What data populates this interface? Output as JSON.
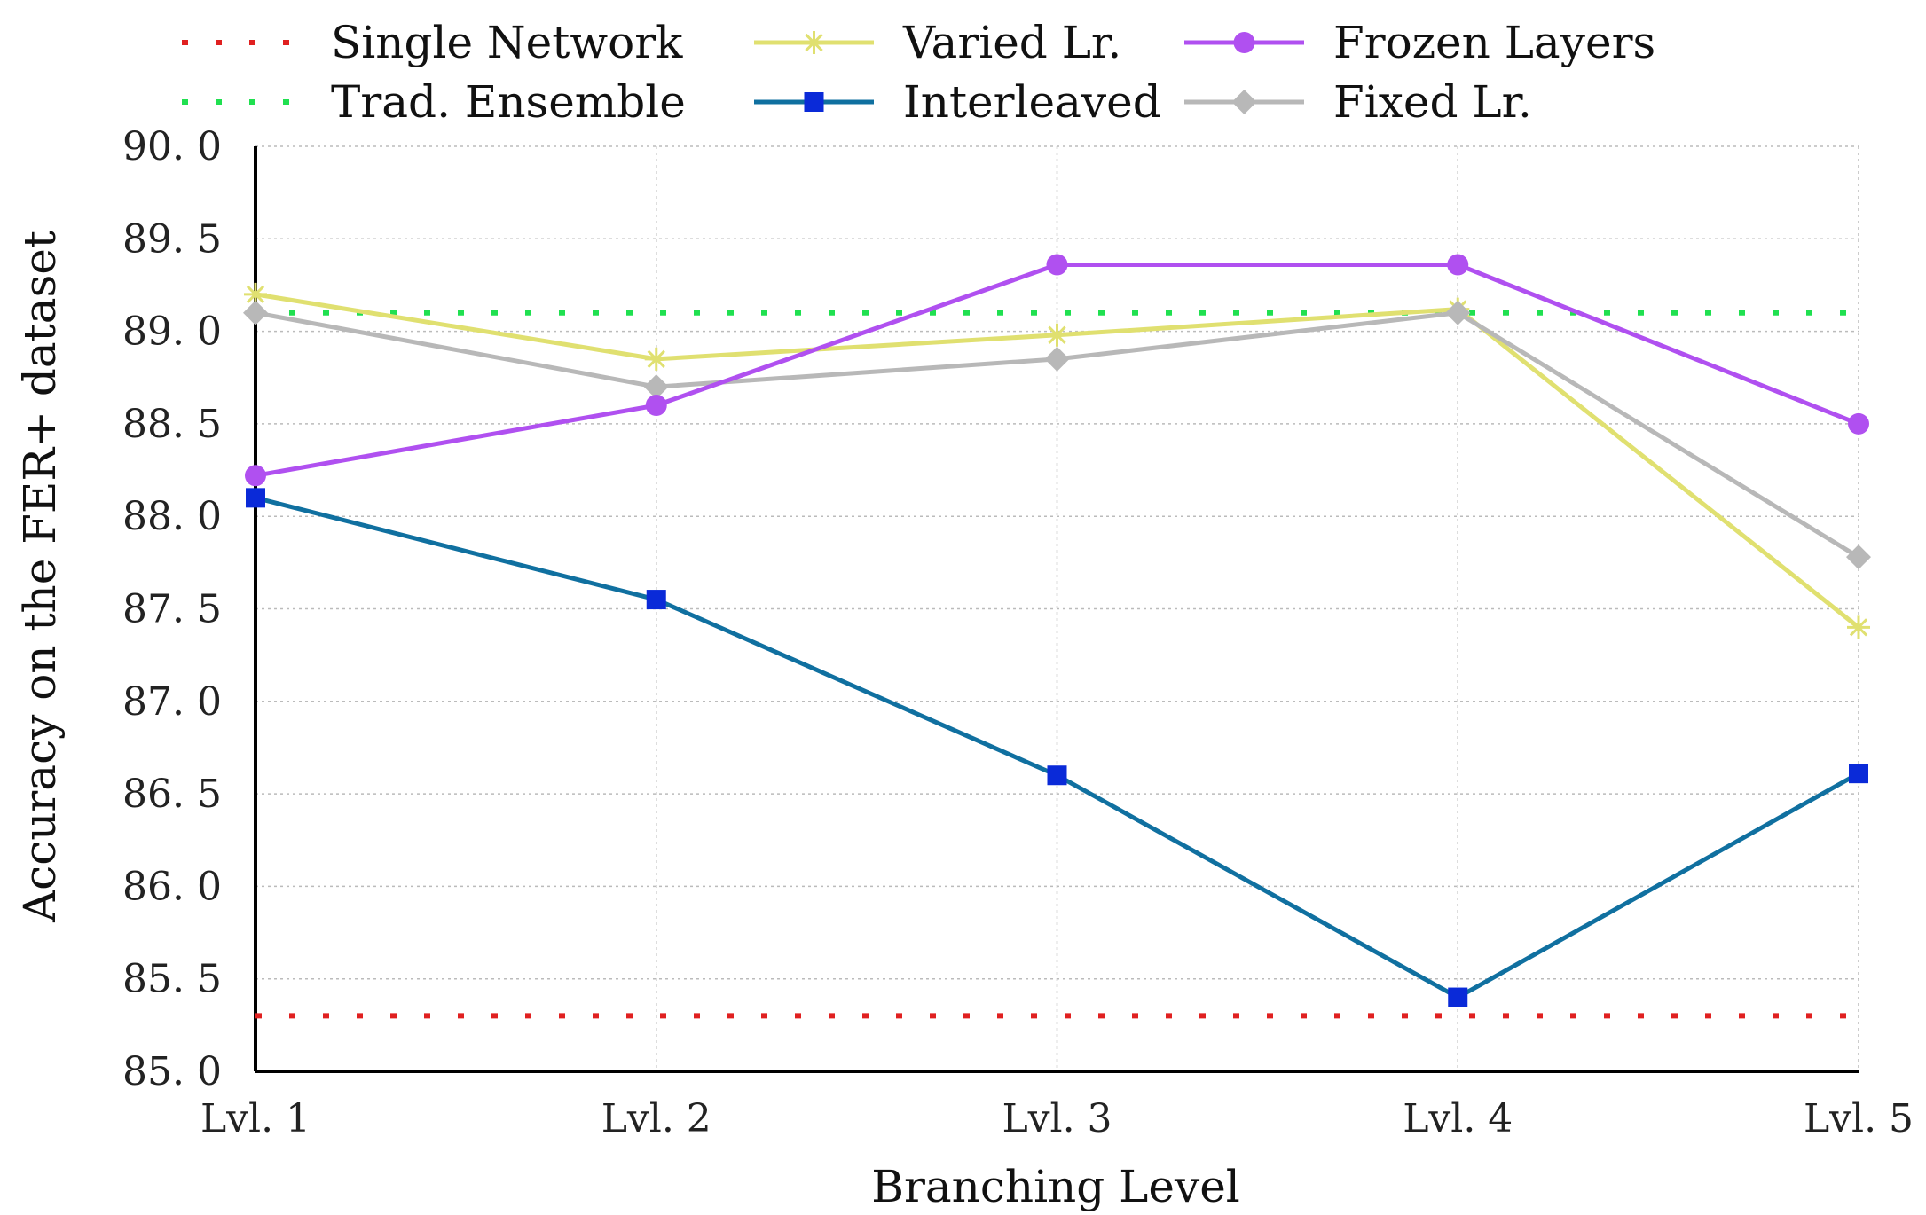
{
  "chart_data": {
    "type": "line",
    "title": "",
    "xlabel": "Branching Level",
    "ylabel": "Accuracy on the FER+ dataset",
    "categories": [
      "Lvl. 1",
      "Lvl. 2",
      "Lvl. 3",
      "Lvl. 4",
      "Lvl. 5"
    ],
    "yticks": [
      "85. 0",
      "85. 5",
      "86. 0",
      "86. 5",
      "87. 0",
      "87. 5",
      "88. 0",
      "88. 5",
      "89. 0",
      "89. 5",
      "90. 0"
    ],
    "ylim": [
      85.0,
      90.0
    ],
    "grid": true,
    "legend_position": "top",
    "series": [
      {
        "name": "Single Network",
        "style": "dotted",
        "marker": "none",
        "color": "#e02020",
        "values": [
          85.3,
          85.3,
          85.3,
          85.3,
          85.3
        ]
      },
      {
        "name": "Varied Lr.",
        "style": "solid",
        "marker": "star",
        "color": "#e0e070",
        "values": [
          89.2,
          88.85,
          88.98,
          89.12,
          87.4
        ]
      },
      {
        "name": "Frozen Layers",
        "style": "solid",
        "marker": "circle",
        "color": "#b050f0",
        "values": [
          88.22,
          88.6,
          89.36,
          89.36,
          88.5
        ]
      },
      {
        "name": "Trad. Ensemble",
        "style": "dotted",
        "marker": "none",
        "color": "#20e050",
        "values": [
          89.1,
          89.1,
          89.1,
          89.1,
          89.1
        ]
      },
      {
        "name": "Interleaved",
        "style": "solid",
        "marker": "square",
        "color": "#1070a0",
        "marker_color": "#0a2ad8",
        "values": [
          88.1,
          87.55,
          86.6,
          85.4,
          86.61
        ]
      },
      {
        "name": "Fixed Lr.",
        "style": "solid",
        "marker": "diamond",
        "color": "#b8b8b8",
        "values": [
          89.1,
          88.7,
          88.85,
          89.1,
          87.78
        ]
      }
    ]
  }
}
